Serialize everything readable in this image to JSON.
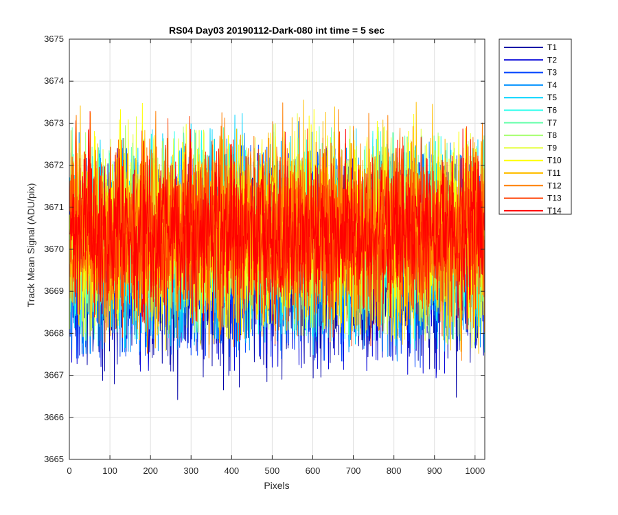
{
  "chart_data": {
    "type": "line",
    "title": "RS04 Day03 20190112-Dark-080 int time = 5 sec",
    "xlabel": "Pixels",
    "ylabel": "Track Mean Signal (ADU/pix)",
    "xlim": [
      0,
      1024
    ],
    "ylim": [
      3665,
      3675
    ],
    "xticks": [
      0,
      100,
      200,
      300,
      400,
      500,
      600,
      700,
      800,
      900,
      1000
    ],
    "yticks": [
      3665,
      3666,
      3667,
      3668,
      3669,
      3670,
      3671,
      3672,
      3673,
      3674,
      3675
    ],
    "grid": true,
    "legend_position": "outside-top-right",
    "series": [
      {
        "name": "T1",
        "color": "#0000a8",
        "mean": 3669.6,
        "spread": 1.2,
        "envelope_x": [
          0,
          256,
          512,
          768,
          1024
        ],
        "envelope_min": [
          3667.1,
          3666.4,
          3666.9,
          3667.0,
          3665.7
        ],
        "envelope_max": [
          3672.2,
          3672.0,
          3672.1,
          3671.9,
          3671.8
        ]
      },
      {
        "name": "T2",
        "color": "#0000d8",
        "mean": 3669.8,
        "spread": 1.2,
        "envelope_x": [
          0,
          256,
          512,
          768,
          1024
        ],
        "envelope_min": [
          3667.3,
          3667.0,
          3667.2,
          3667.1,
          3666.8
        ],
        "envelope_max": [
          3672.3,
          3672.2,
          3672.3,
          3672.1,
          3672.0
        ]
      },
      {
        "name": "T3",
        "color": "#0044ff",
        "mean": 3669.9,
        "spread": 1.2,
        "envelope_x": [
          0,
          256,
          512,
          768,
          1024
        ],
        "envelope_min": [
          3667.4,
          3667.5,
          3667.4,
          3667.3,
          3667.0
        ],
        "envelope_max": [
          3672.4,
          3672.4,
          3672.5,
          3672.3,
          3672.2
        ]
      },
      {
        "name": "T4",
        "color": "#0090ff",
        "mean": 3670.0,
        "spread": 1.2,
        "envelope_x": [
          0,
          256,
          512,
          768,
          1024
        ],
        "envelope_min": [
          3667.5,
          3667.6,
          3667.6,
          3667.4,
          3667.0
        ],
        "envelope_max": [
          3672.8,
          3672.6,
          3673.6,
          3672.6,
          3672.5
        ]
      },
      {
        "name": "T5",
        "color": "#00d4ff",
        "mean": 3670.1,
        "spread": 1.2,
        "envelope_x": [
          0,
          256,
          512,
          768,
          1024
        ],
        "envelope_min": [
          3667.6,
          3667.7,
          3667.8,
          3666.9,
          3666.7
        ],
        "envelope_max": [
          3673.5,
          3672.9,
          3673.4,
          3672.7,
          3672.6
        ]
      },
      {
        "name": "T6",
        "color": "#28ffec",
        "mean": 3670.2,
        "spread": 1.1,
        "envelope_x": [
          0,
          256,
          512,
          768,
          1024
        ],
        "envelope_min": [
          3667.8,
          3667.9,
          3668.0,
          3667.8,
          3667.2
        ],
        "envelope_max": [
          3673.3,
          3672.8,
          3672.9,
          3672.8,
          3672.6
        ]
      },
      {
        "name": "T7",
        "color": "#6cffae",
        "mean": 3670.2,
        "spread": 1.1,
        "envelope_x": [
          0,
          256,
          512,
          768,
          1024
        ],
        "envelope_min": [
          3667.8,
          3668.0,
          3668.1,
          3667.9,
          3667.5
        ],
        "envelope_max": [
          3672.9,
          3672.8,
          3673.0,
          3672.8,
          3672.6
        ]
      },
      {
        "name": "T8",
        "color": "#a8ff72",
        "mean": 3670.3,
        "spread": 1.1,
        "envelope_x": [
          0,
          256,
          512,
          768,
          1024
        ],
        "envelope_min": [
          3667.9,
          3668.0,
          3668.1,
          3668.0,
          3667.6
        ],
        "envelope_max": [
          3673.0,
          3672.9,
          3673.1,
          3672.9,
          3672.7
        ]
      },
      {
        "name": "T9",
        "color": "#e4ff36",
        "mean": 3670.3,
        "spread": 1.1,
        "envelope_x": [
          0,
          256,
          512,
          768,
          1024
        ],
        "envelope_min": [
          3667.9,
          3668.1,
          3668.2,
          3668.0,
          3667.6
        ],
        "envelope_max": [
          3673.4,
          3673.2,
          3673.5,
          3673.3,
          3673.0
        ]
      },
      {
        "name": "T10",
        "color": "#ffff00",
        "mean": 3670.4,
        "spread": 1.1,
        "envelope_x": [
          0,
          256,
          512,
          768,
          1024
        ],
        "envelope_min": [
          3668.0,
          3667.5,
          3668.2,
          3667.9,
          3667.7
        ],
        "envelope_max": [
          3674.0,
          3673.3,
          3673.8,
          3673.4,
          3674.1
        ]
      },
      {
        "name": "T11",
        "color": "#ffbe00",
        "mean": 3670.4,
        "spread": 1.1,
        "envelope_x": [
          0,
          256,
          512,
          768,
          1024
        ],
        "envelope_min": [
          3667.7,
          3667.6,
          3668.0,
          3667.8,
          3667.5
        ],
        "envelope_max": [
          3674.0,
          3673.4,
          3673.8,
          3673.6,
          3673.3
        ]
      },
      {
        "name": "T12",
        "color": "#ff7e00",
        "mean": 3670.4,
        "spread": 1.1,
        "envelope_x": [
          0,
          256,
          512,
          768,
          1024
        ],
        "envelope_min": [
          3666.1,
          3667.4,
          3666.6,
          3667.1,
          3667.3
        ],
        "envelope_max": [
          3673.4,
          3673.3,
          3673.5,
          3673.2,
          3673.0
        ]
      },
      {
        "name": "T13",
        "color": "#ff3f00",
        "mean": 3670.4,
        "spread": 1.0,
        "envelope_x": [
          0,
          256,
          512,
          768,
          1024
        ],
        "envelope_min": [
          3667.8,
          3668.0,
          3667.7,
          3667.7,
          3667.5
        ],
        "envelope_max": [
          3673.3,
          3673.1,
          3673.5,
          3673.0,
          3672.9
        ]
      },
      {
        "name": "T14",
        "color": "#ff0000",
        "mean": 3670.4,
        "spread": 1.0,
        "envelope_x": [
          0,
          256,
          512,
          768,
          1024
        ],
        "envelope_min": [
          3668.2,
          3668.3,
          3668.3,
          3668.2,
          3667.9
        ],
        "envelope_max": [
          3673.3,
          3673.2,
          3673.7,
          3673.1,
          3672.8
        ]
      }
    ]
  }
}
